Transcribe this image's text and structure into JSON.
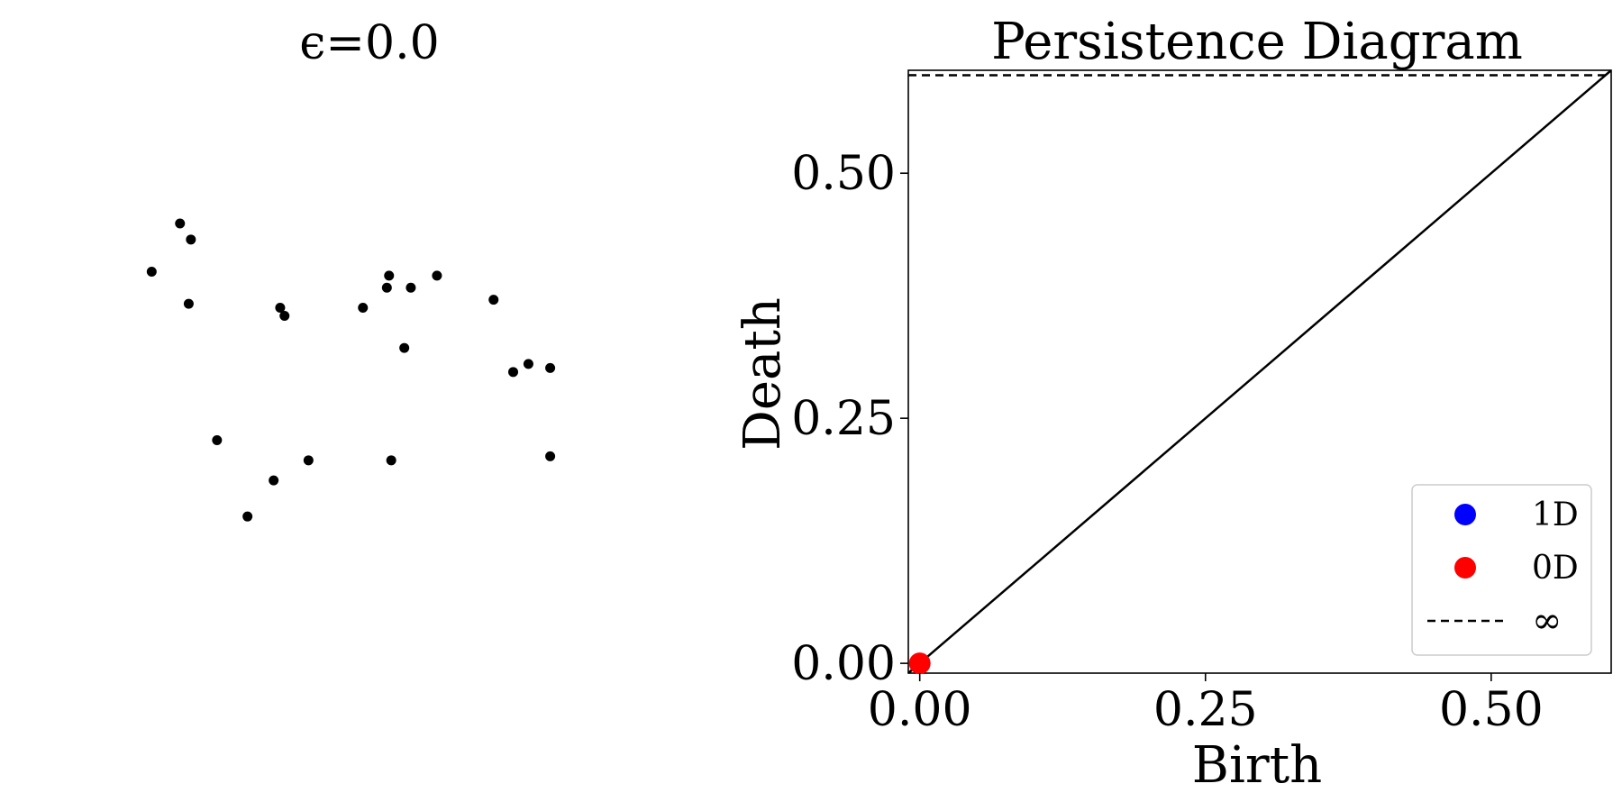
{
  "chart_data": [
    {
      "type": "scatter",
      "title": "ϵ=0.0",
      "axes_visible": false,
      "marker_color": "#000000",
      "x": [
        0.64,
        1.3,
        2.03,
        2.03,
        0.92,
        1.51,
        0.2,
        1.86,
        1.17,
        0.37,
        0.81,
        1.39,
        0.38,
        0.33,
        0.79,
        0.5,
        0.76,
        1.77,
        1.93,
        1.28,
        1.29,
        1.36
      ],
      "y": [
        0.1,
        0.24,
        0.25,
        0.47,
        0.24,
        0.7,
        0.71,
        0.46,
        0.62,
        0.63,
        0.6,
        0.67,
        0.79,
        0.83,
        0.62,
        0.29,
        0.19,
        0.64,
        0.48,
        0.67,
        0.7,
        0.52
      ],
      "xlim": [
        0.0,
        2.4
      ],
      "ylim": [
        -0.05,
        1.05
      ]
    },
    {
      "type": "scatter",
      "title": "Persistence Diagram",
      "xlabel": "Birth",
      "ylabel": "Death",
      "xlim": [
        -0.01,
        0.605
      ],
      "ylim": [
        -0.01,
        0.605
      ],
      "xticks": [
        "0.00",
        "0.25",
        "0.50"
      ],
      "xtick_values": [
        0.0,
        0.25,
        0.5
      ],
      "yticks": [
        "0.00",
        "0.25",
        "0.50"
      ],
      "ytick_values": [
        0.0,
        0.25,
        0.5
      ],
      "infinity_level": 0.6,
      "diagonal": true,
      "series": [
        {
          "name": "1D",
          "color": "#0000ff",
          "x": [],
          "y": []
        },
        {
          "name": "0D",
          "color": "#ff0000",
          "x": [
            0.0
          ],
          "y": [
            0.0
          ]
        }
      ],
      "legend": {
        "placement": "bottom-right",
        "entries": [
          {
            "label": "1D",
            "kind": "marker",
            "color": "#0000ff"
          },
          {
            "label": "0D",
            "kind": "marker",
            "color": "#ff0000"
          },
          {
            "label": "∞",
            "kind": "dashed-line",
            "color": "#000000"
          }
        ]
      }
    }
  ]
}
